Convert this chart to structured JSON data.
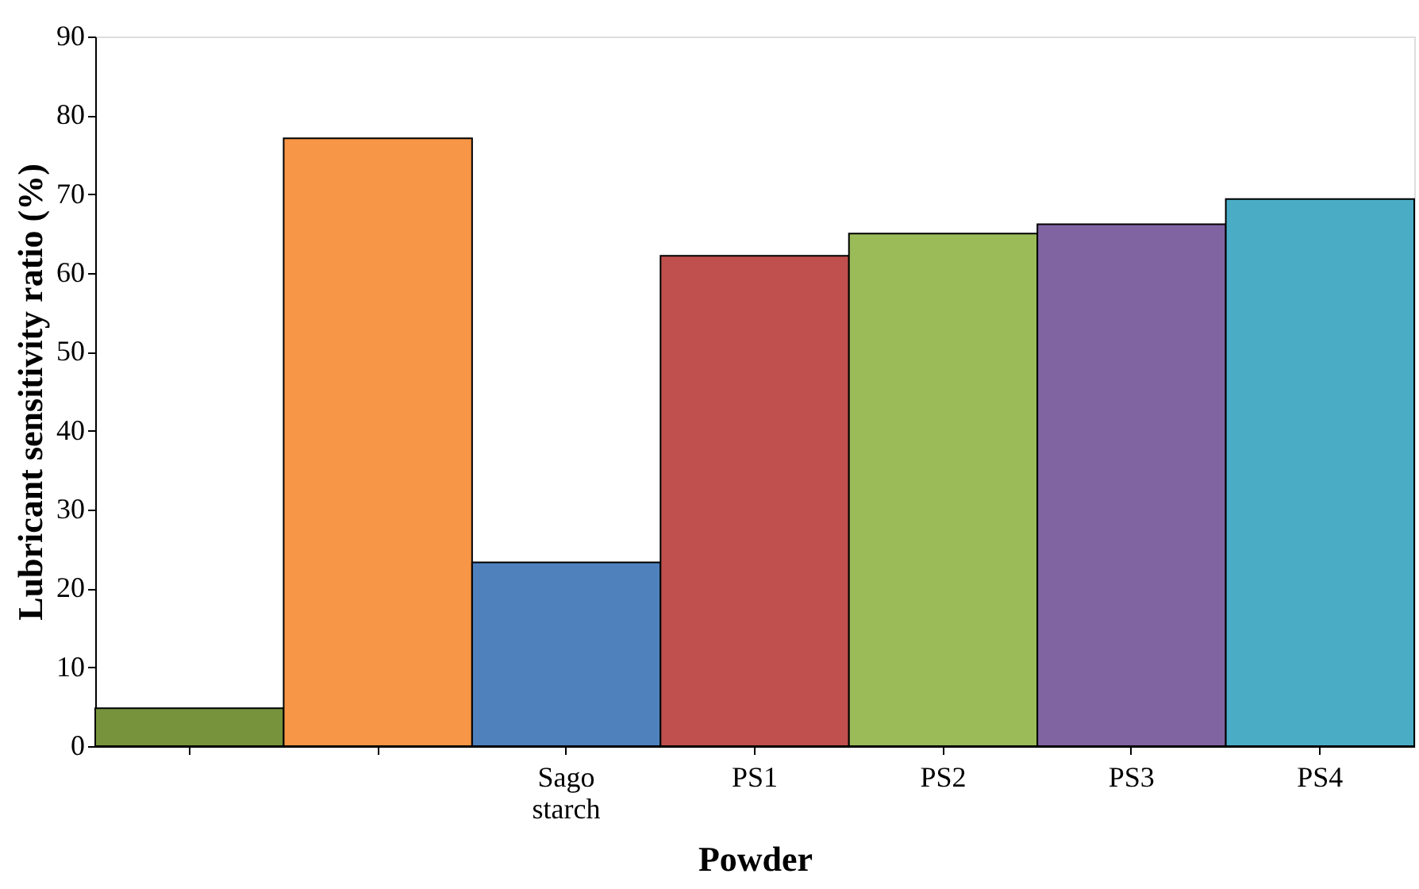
{
  "chart_data": {
    "type": "bar",
    "xlabel": "Powder",
    "ylabel": "Lubricant sensitivity ratio (%)",
    "categories": [
      null,
      null,
      "Sago starch",
      "PS1",
      "PS2",
      "PS3",
      "PS4"
    ],
    "values": [
      4.8,
      77.1,
      23.3,
      62.2,
      65.0,
      66.2,
      69.4
    ],
    "colors": [
      "#77933c",
      "#f79646",
      "#4f81bd",
      "#c0504d",
      "#9bbb59",
      "#8064a2",
      "#4bacc6"
    ],
    "ylim": [
      0,
      90
    ],
    "yticks": [
      0,
      10,
      20,
      30,
      40,
      50,
      60,
      70,
      80,
      90
    ],
    "grid": false,
    "legend": false
  }
}
